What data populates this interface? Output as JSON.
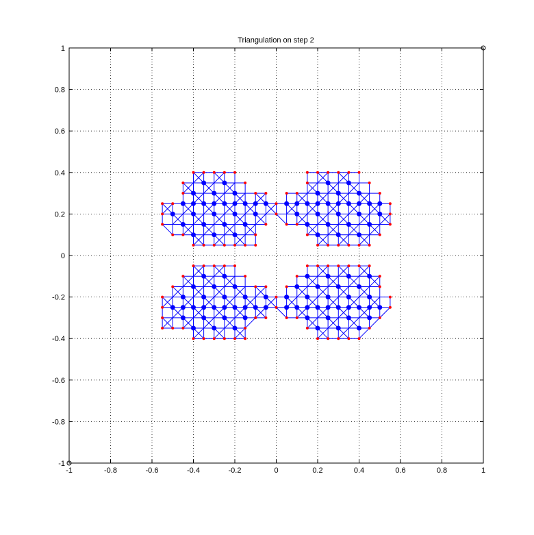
{
  "chart_data": {
    "type": "scatter",
    "title": "Triangulation on step 2",
    "xlabel": "",
    "ylabel": "",
    "xlim": [
      -1,
      1
    ],
    "ylim": [
      -1,
      1
    ],
    "grid": true,
    "x_ticks": [
      -1,
      -0.8,
      -0.6,
      -0.4,
      -0.2,
      0,
      0.2,
      0.4,
      0.6,
      0.8,
      1
    ],
    "y_ticks": [
      -1,
      -0.8,
      -0.6,
      -0.4,
      -0.2,
      0,
      0.2,
      0.4,
      0.6,
      0.8,
      1
    ],
    "x_tick_labels": [
      "-1",
      "-0.8",
      "-0.6",
      "-0.4",
      "-0.2",
      "0",
      "0.2",
      "0.4",
      "0.6",
      "0.8",
      "1"
    ],
    "y_tick_labels": [
      "-1",
      "-0.8",
      "-0.6",
      "-0.4",
      "-0.2",
      "0",
      "0.2",
      "0.4",
      "0.6",
      "0.8",
      "1"
    ],
    "colors": {
      "mesh": "#0000ff",
      "interior": "#0000ff",
      "boundary": "#ff0000",
      "corner": "#000000"
    },
    "corner_markers": [
      [
        -1,
        -1
      ],
      [
        1,
        1
      ]
    ],
    "regions": [
      {
        "y_rows": [
          0.4,
          0.35,
          0.3,
          0.25,
          0.2,
          0.15,
          0.1,
          0.05
        ],
        "row_spans": [
          [
            [
              -0.4,
              -0.2
            ],
            [
              0.15,
              0.4
            ]
          ],
          [
            [
              -0.45,
              -0.15
            ],
            [
              0.15,
              0.45
            ]
          ],
          [
            [
              -0.45,
              -0.05
            ],
            [
              0.05,
              0.5
            ]
          ],
          [
            [
              -0.55,
              0.55
            ]
          ],
          [
            [
              -0.55,
              0.55
            ]
          ],
          [
            [
              -0.55,
              -0.05
            ],
            [
              0.05,
              0.55
            ]
          ],
          [
            [
              -0.5,
              -0.1
            ],
            [
              0.15,
              0.5
            ]
          ],
          [
            [
              -0.4,
              -0.1
            ],
            [
              0.2,
              0.45
            ]
          ]
        ]
      },
      {
        "y_rows": [
          -0.05,
          -0.1,
          -0.15,
          -0.2,
          -0.25,
          -0.3,
          -0.35,
          -0.4
        ],
        "row_spans": [
          [
            [
              -0.4,
              -0.2
            ],
            [
              0.15,
              0.45
            ]
          ],
          [
            [
              -0.45,
              -0.15
            ],
            [
              0.1,
              0.5
            ]
          ],
          [
            [
              -0.5,
              -0.05
            ],
            [
              0.05,
              0.5
            ]
          ],
          [
            [
              -0.55,
              0.55
            ]
          ],
          [
            [
              -0.55,
              0.55
            ]
          ],
          [
            [
              -0.55,
              -0.05
            ],
            [
              0.05,
              0.5
            ]
          ],
          [
            [
              -0.55,
              -0.15
            ],
            [
              0.15,
              0.45
            ]
          ],
          [
            [
              -0.4,
              -0.15
            ],
            [
              0.2,
              0.4
            ]
          ]
        ]
      }
    ]
  }
}
